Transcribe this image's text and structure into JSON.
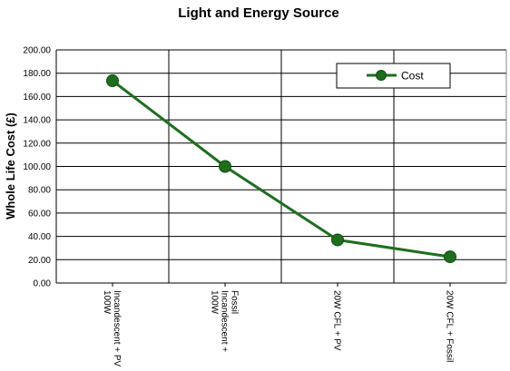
{
  "chart_data": {
    "type": "line",
    "title": "Light and Energy Source",
    "xlabel": "",
    "ylabel": "Whole Life Cost (£)",
    "categories": [
      [
        "100W",
        "Incandescent + PV"
      ],
      [
        "100W",
        "Incandescent +",
        "Fossil"
      ],
      [
        "20W CFL + PV"
      ],
      [
        "20W CFL + Fossil"
      ]
    ],
    "series": [
      {
        "name": "Cost",
        "values": [
          173.5,
          100.0,
          37.0,
          22.5
        ],
        "color": "#1e6e1e"
      }
    ],
    "ylim": [
      0,
      200
    ],
    "yticks": [
      0,
      20,
      40,
      60,
      80,
      100,
      120,
      140,
      160,
      180,
      200
    ],
    "ytick_labels": [
      "0.00",
      "20.00",
      "40.00",
      "60.00",
      "80.00",
      "100.00",
      "120.00",
      "140.00",
      "160.00",
      "180.00",
      "200.00"
    ],
    "grid": true,
    "legend": "top-right"
  }
}
